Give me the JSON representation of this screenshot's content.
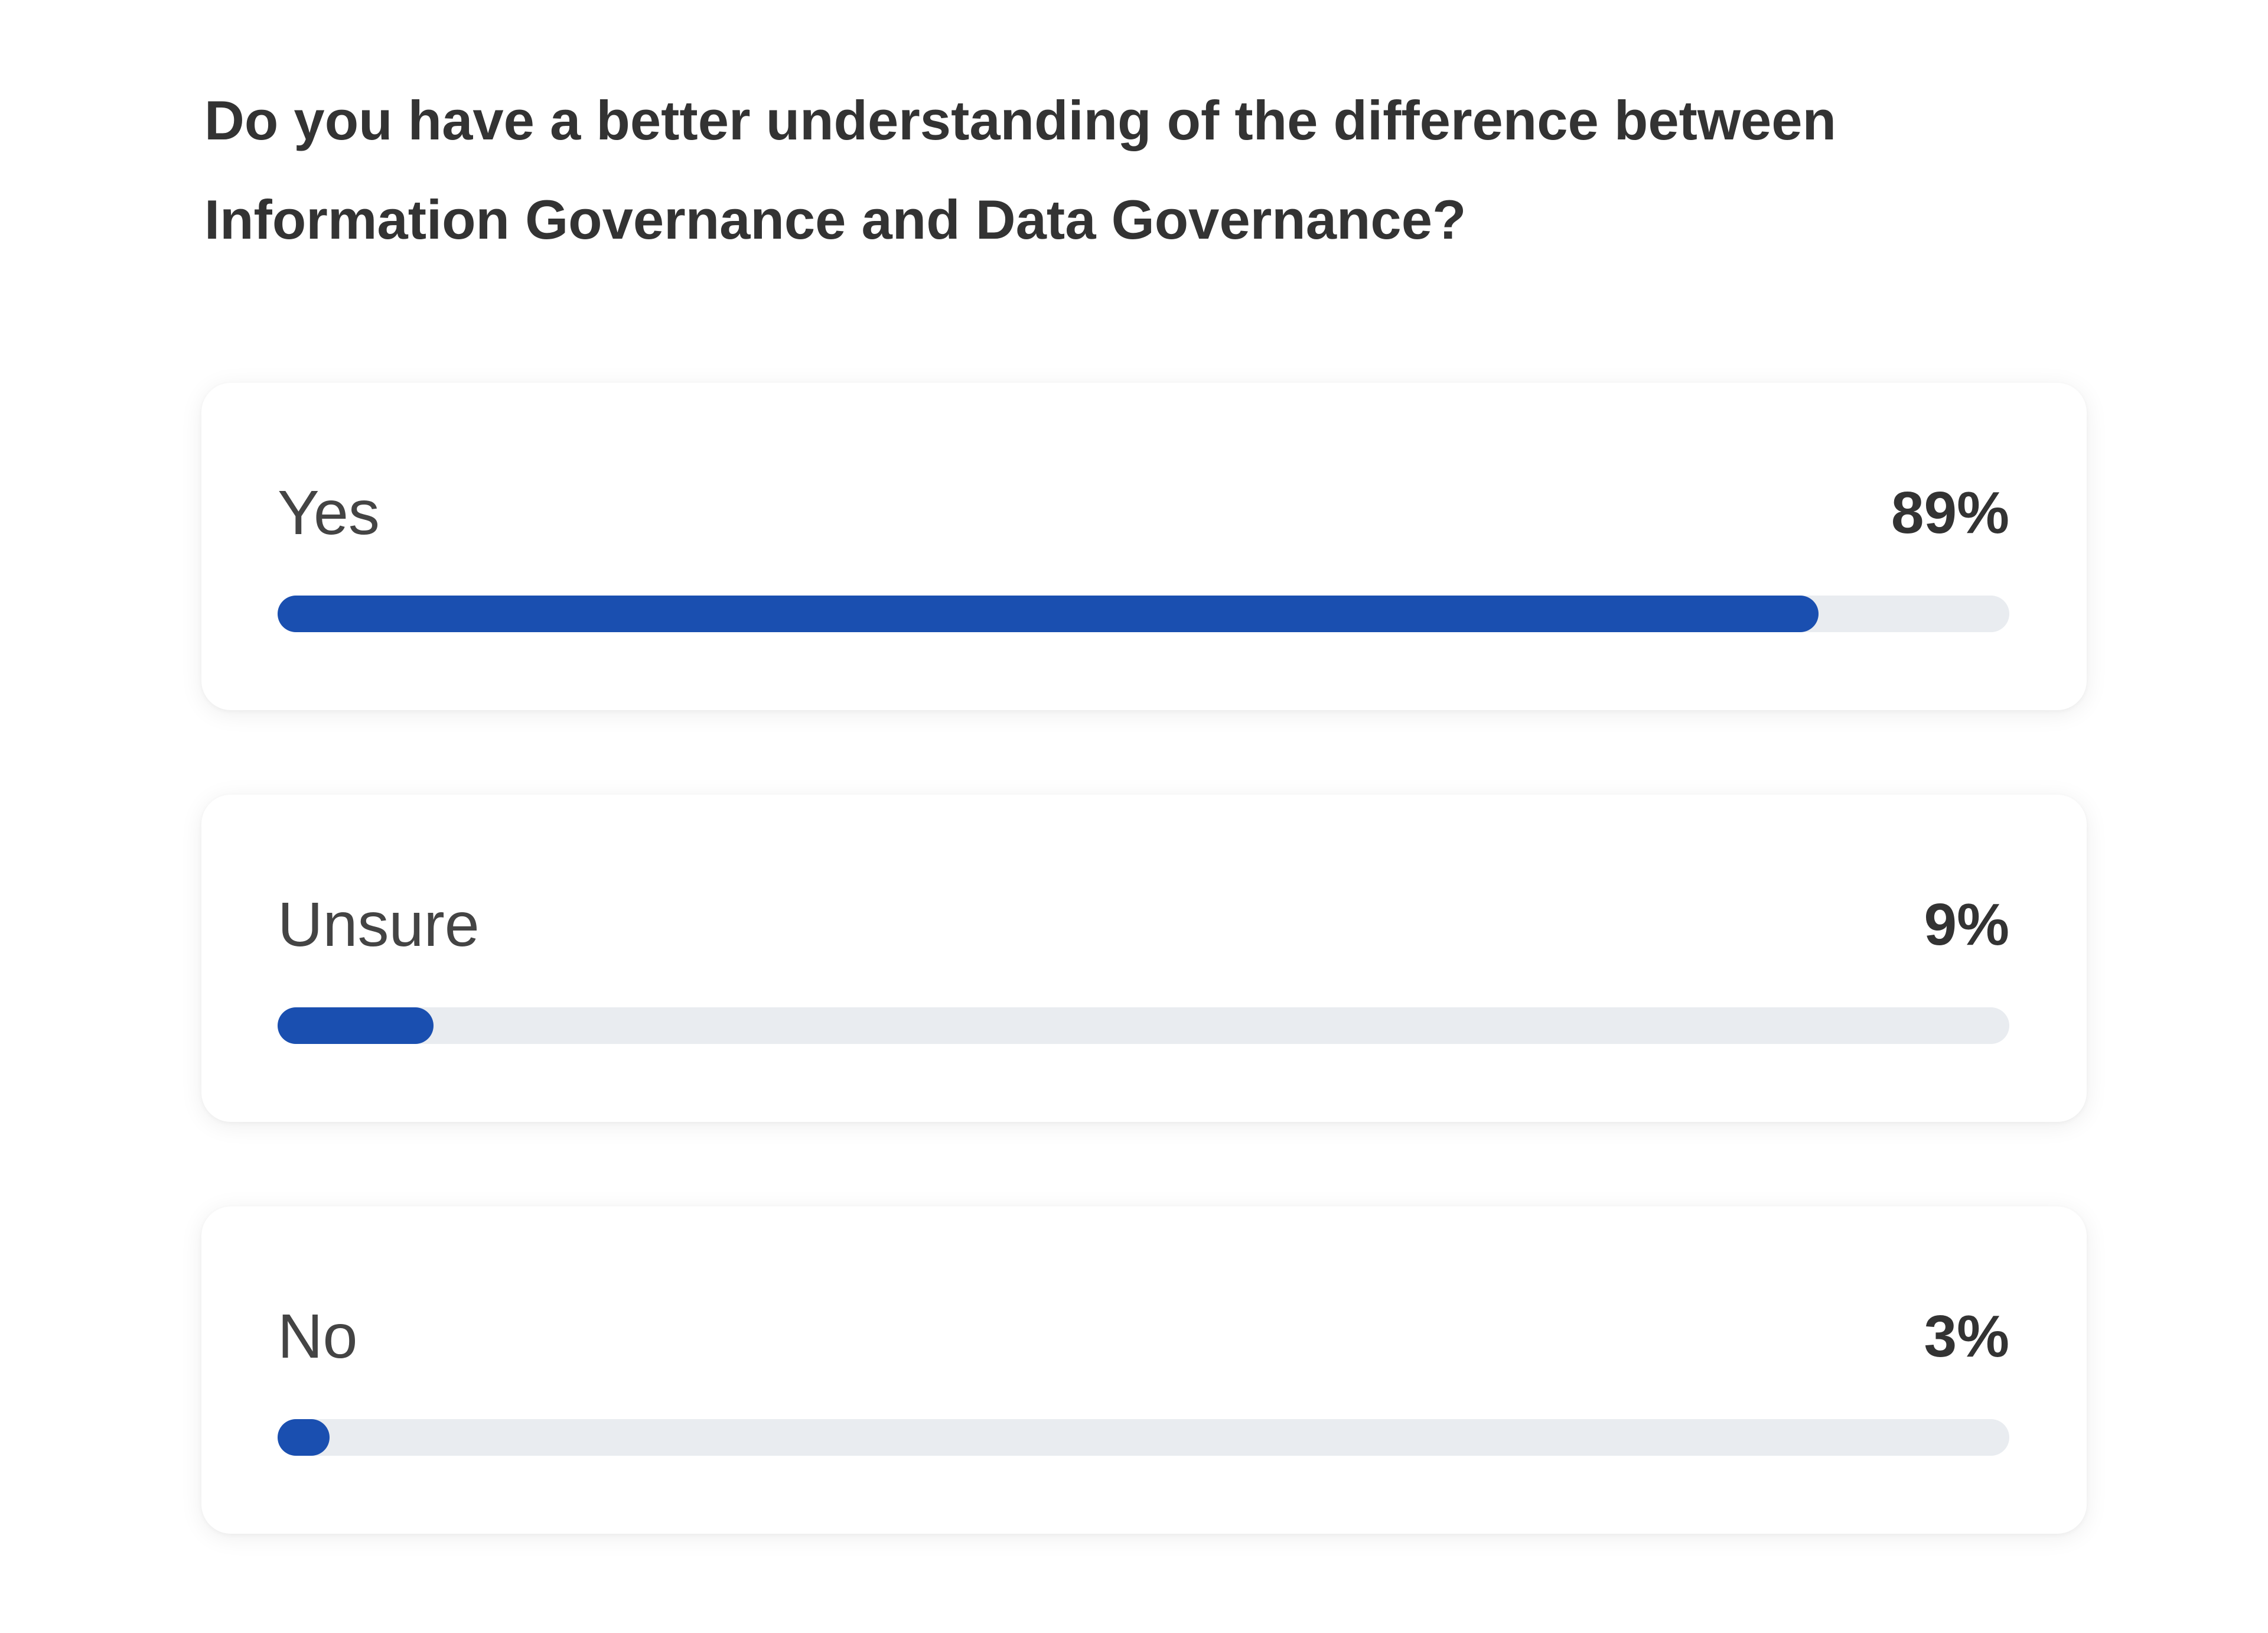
{
  "chart_data": {
    "type": "bar",
    "title": "Do you have a better understanding of the difference between Information Governance and Data Governance?",
    "categories": [
      "Yes",
      "Unsure",
      "No"
    ],
    "values": [
      89,
      9,
      3
    ],
    "value_labels": [
      "89%",
      "9%",
      "3%"
    ],
    "color": "#1a4fb0",
    "xlim": [
      0,
      100
    ]
  }
}
